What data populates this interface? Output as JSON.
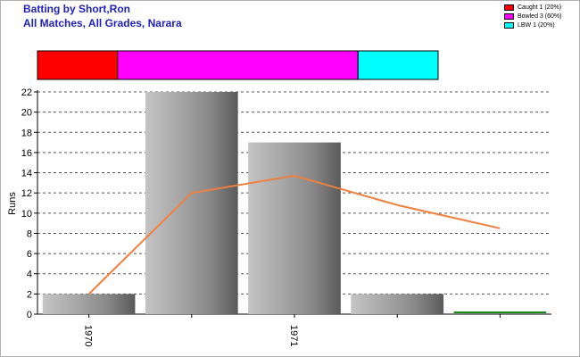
{
  "header": {
    "title": "Batting by Short,Ron",
    "subtitle": "All Matches, All Grades, Narara"
  },
  "dismissals": [
    {
      "label": "Caught 1 (20%)",
      "color": "#ff0000",
      "fraction": 0.2
    },
    {
      "label": "Bowled 3 (60%)",
      "color": "#ff00ff",
      "fraction": 0.6
    },
    {
      "label": "LBW 1 (20%)",
      "color": "#00ffff",
      "fraction": 0.2
    }
  ],
  "chart_data": {
    "type": "bar",
    "ylabel": "Runs",
    "ylim": [
      0,
      22
    ],
    "yticks": [
      0,
      2,
      4,
      6,
      8,
      10,
      12,
      14,
      16,
      18,
      20,
      22
    ],
    "grid": true,
    "xtick_labels": [
      "1970",
      "1971"
    ],
    "series": [
      {
        "kind": "bar",
        "values": [
          2,
          22,
          17,
          2,
          0
        ],
        "color": "#9a9a9a"
      },
      {
        "kind": "line",
        "values": [
          2,
          12,
          13.7,
          10.8,
          8.5
        ],
        "color": "#f08040"
      }
    ]
  }
}
